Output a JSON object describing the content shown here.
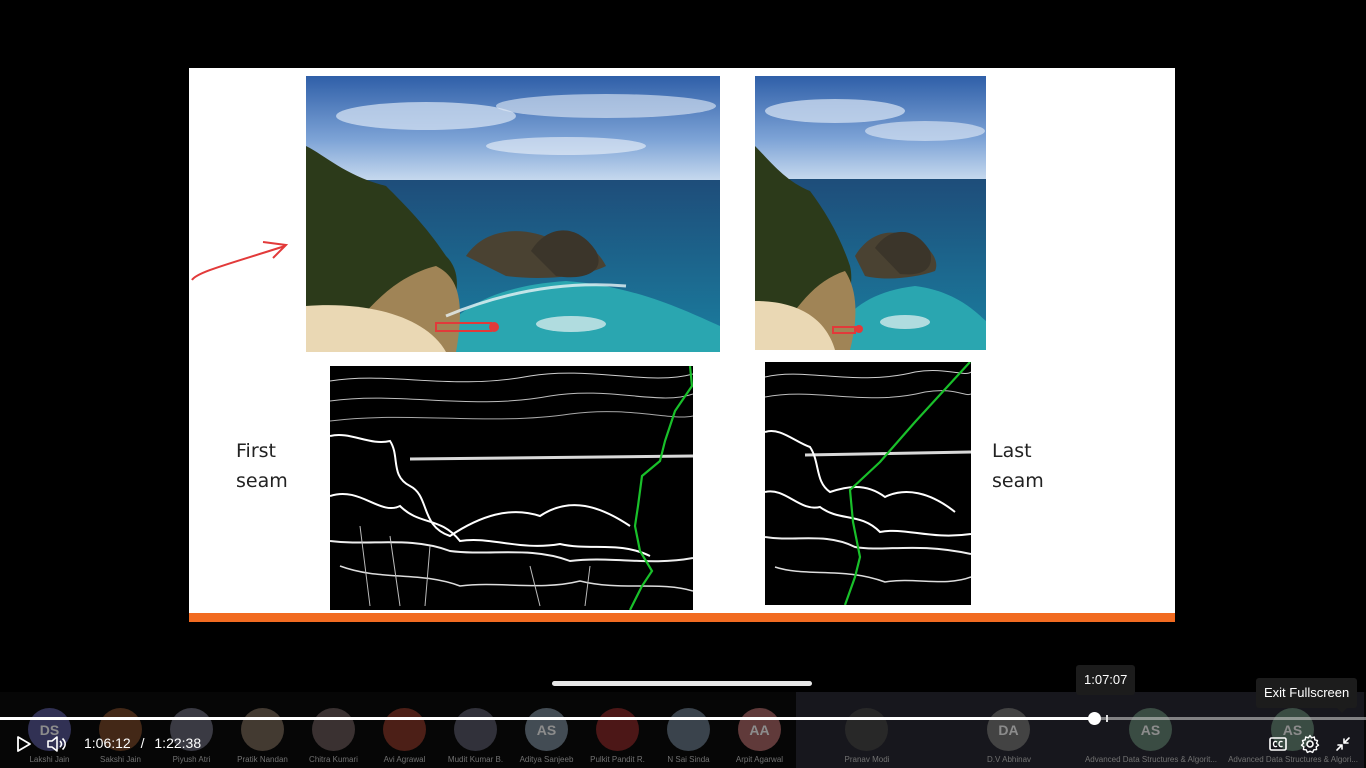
{
  "slide": {
    "first_seam_label": "First\nseam",
    "last_seam_label": "Last\nseam"
  },
  "player": {
    "current_time": "1:06:12",
    "separator": "/",
    "duration": "1:22:38",
    "hover_time": "1:07:07",
    "exit_fullscreen_tooltip": "Exit Fullscreen",
    "progress_fraction": 0.801,
    "hover_fraction": 0.81
  },
  "icons": {
    "play": "play-icon",
    "volume": "volume-icon",
    "captions": "captions-icon",
    "settings": "gear-icon",
    "exit_fullscreen": "exit-fullscreen-icon"
  },
  "participants": [
    {
      "initials": "DS",
      "name": "Lakshi Jain",
      "color": "#5a5a9a"
    },
    {
      "initials": "",
      "name": "Sakshi Jain",
      "color": "#7a4a2a"
    },
    {
      "initials": "",
      "name": "Piyush Atri",
      "color": "#6a6a7a"
    },
    {
      "initials": "",
      "name": "Pratik Nandan",
      "color": "#7a6a5a"
    },
    {
      "initials": "",
      "name": "Chitra Kumari",
      "color": "#6a5a5a"
    },
    {
      "initials": "",
      "name": "Avi Agrawal",
      "color": "#8a3a2a"
    },
    {
      "initials": "",
      "name": "Mudit Kumar B.",
      "color": "#5a5a6a"
    },
    {
      "initials": "AS",
      "name": "Aditya Sanjeeb",
      "color": "#7a8a9a"
    },
    {
      "initials": "",
      "name": "Pulkit Pandit R.",
      "color": "#8a2a2a"
    },
    {
      "initials": "",
      "name": "N Sai Sinda",
      "color": "#6a7a8a"
    },
    {
      "initials": "AA",
      "name": "Arpit Agarwal",
      "color": "#b06a6a"
    },
    {
      "initials": "",
      "name": "Pranav Modi",
      "color": "#4a4a4a",
      "wide": true
    },
    {
      "initials": "DA",
      "name": "D.V Abhinav",
      "color": "#7a7a7a",
      "wide": true
    },
    {
      "initials": "AS",
      "name": "Advanced Data Structures & Algorit...",
      "color": "#6a8a7a",
      "wide": true
    },
    {
      "initials": "AS",
      "name": "Advanced Data Structures & Algori...",
      "color": "#6a8a7a",
      "wide": true
    }
  ]
}
